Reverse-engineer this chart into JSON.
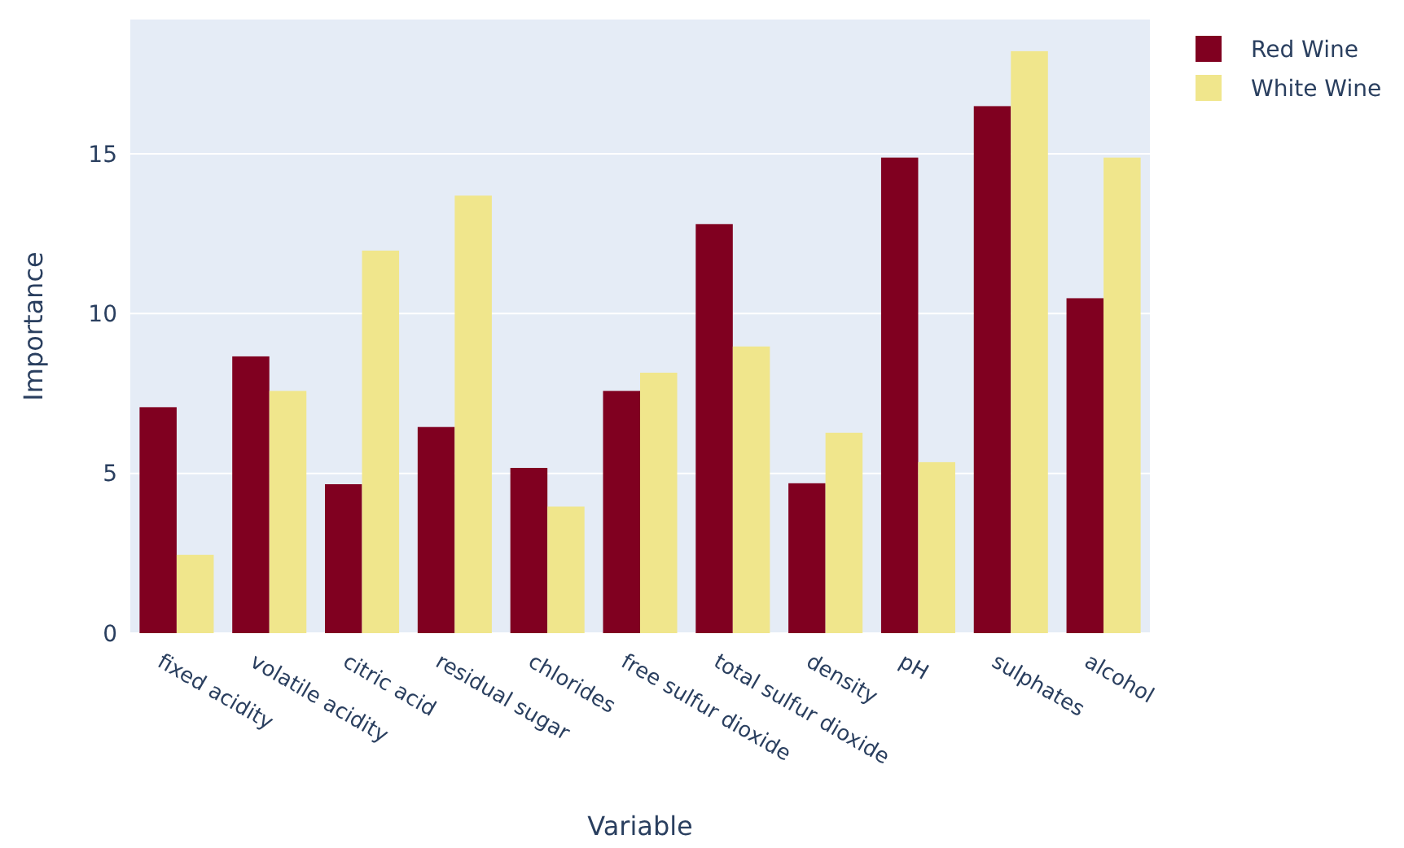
{
  "chart_data": {
    "type": "bar",
    "xlabel": "Variable",
    "ylabel": "Importance",
    "categories": [
      "fixed acidity",
      "volatile acidity",
      "citric acid",
      "residual sugar",
      "chlorides",
      "free sulfur dioxide",
      "total sulfur dioxide",
      "density",
      "pH",
      "sulphates",
      "alcohol"
    ],
    "series": [
      {
        "name": "Red Wine",
        "color": "#800020",
        "values": [
          7.07,
          8.66,
          4.66,
          6.45,
          5.17,
          7.58,
          12.8,
          4.69,
          14.88,
          16.49,
          10.48
        ]
      },
      {
        "name": "White Wine",
        "color": "#f0e68c",
        "values": [
          2.45,
          7.58,
          11.97,
          13.69,
          3.96,
          8.15,
          8.97,
          6.27,
          5.35,
          18.21,
          14.88
        ]
      }
    ],
    "ylim": [
      0,
      19.2
    ],
    "yticks": [
      0,
      5,
      10,
      15
    ],
    "grid": "y",
    "legend": "top right"
  }
}
